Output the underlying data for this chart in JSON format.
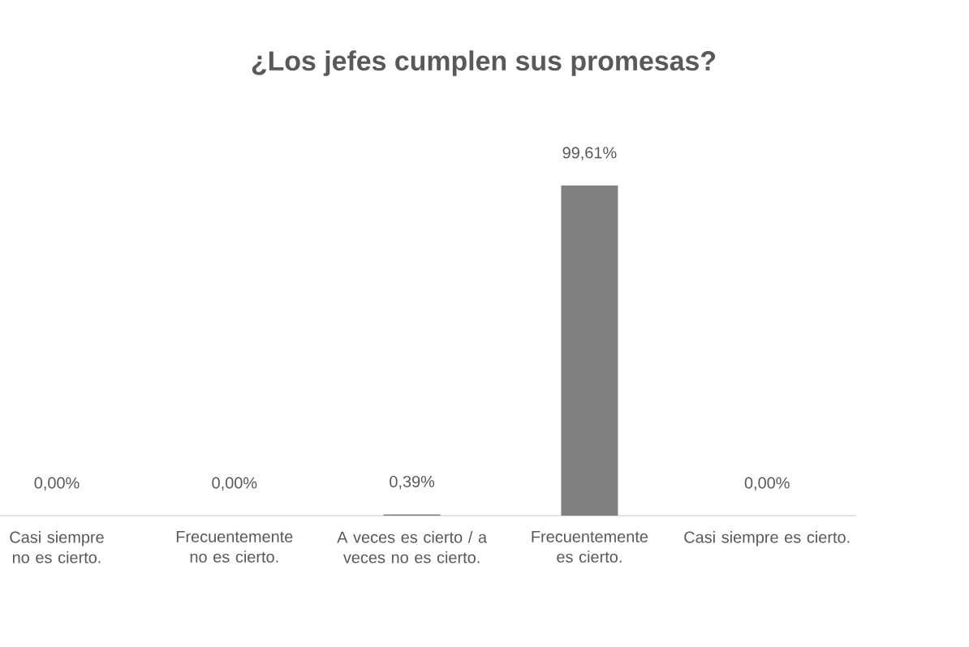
{
  "chart_data": {
    "type": "bar",
    "title": "¿Los jefes cumplen sus promesas?",
    "categories": [
      "Casi siempre no es cierto.",
      "Frecuentemente no es cierto.",
      "A veces es cierto / a veces no es cierto.",
      "Frecuentemente es cierto.",
      "Casi siempre es cierto."
    ],
    "values": [
      0,
      0,
      0.39,
      99.61,
      0
    ],
    "color": "#808080",
    "value_labels": [
      "0,00%",
      "0,00%",
      "0,39%",
      "99,61%",
      "0,00%"
    ]
  }
}
